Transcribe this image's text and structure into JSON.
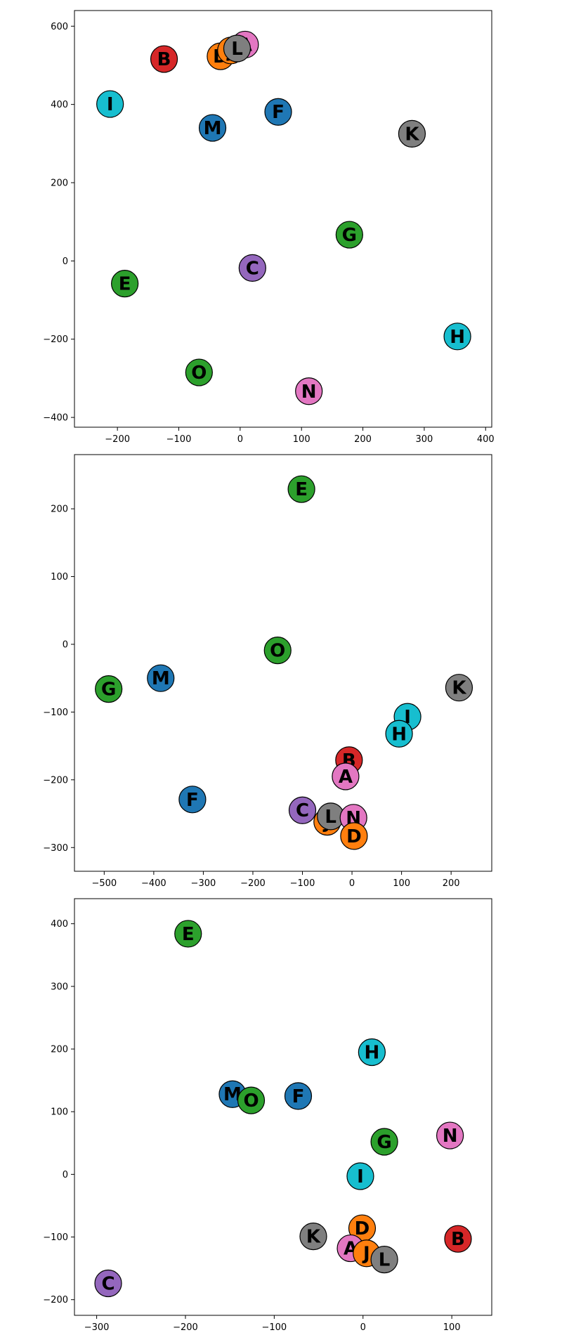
{
  "colors": {
    "blue": "#1f77b4",
    "orange": "#ff7f0e",
    "green": "#2ca02c",
    "red": "#d62728",
    "purple": "#9467bd",
    "pink": "#e377c2",
    "gray": "#7f7f7f",
    "cyan": "#17becf"
  },
  "chart_data": [
    {
      "type": "scatter",
      "xlim": [
        -270,
        410
      ],
      "ylim": [
        -425,
        640
      ],
      "xticks": [
        -200,
        -100,
        0,
        100,
        200,
        300,
        400
      ],
      "yticks": [
        -400,
        -200,
        0,
        200,
        400,
        600
      ],
      "points": [
        {
          "label": "A",
          "x": 8,
          "y": 553,
          "color": "pink"
        },
        {
          "label": "B",
          "x": -124,
          "y": 516,
          "color": "red"
        },
        {
          "label": "C",
          "x": 20,
          "y": -18,
          "color": "purple"
        },
        {
          "label": "D",
          "x": -32,
          "y": 523,
          "color": "orange"
        },
        {
          "label": "E",
          "x": -188,
          "y": -58,
          "color": "green"
        },
        {
          "label": "F",
          "x": 62,
          "y": 381,
          "color": "blue"
        },
        {
          "label": "G",
          "x": 178,
          "y": 67,
          "color": "green"
        },
        {
          "label": "H",
          "x": 354,
          "y": -193,
          "color": "cyan"
        },
        {
          "label": "I",
          "x": -212,
          "y": 401,
          "color": "cyan"
        },
        {
          "label": "J",
          "x": -15,
          "y": 538,
          "color": "orange"
        },
        {
          "label": "L",
          "x": -5,
          "y": 543,
          "color": "gray"
        },
        {
          "label": "K",
          "x": 280,
          "y": 325,
          "color": "gray"
        },
        {
          "label": "M",
          "x": -45,
          "y": 340,
          "color": "blue"
        },
        {
          "label": "N",
          "x": 112,
          "y": -333,
          "color": "pink"
        },
        {
          "label": "O",
          "x": -67,
          "y": -285,
          "color": "green"
        }
      ]
    },
    {
      "type": "scatter",
      "xlim": [
        -560,
        282
      ],
      "ylim": [
        -335,
        280
      ],
      "xticks": [
        -500,
        -400,
        -300,
        -200,
        -100,
        0,
        100,
        200
      ],
      "yticks": [
        -300,
        -200,
        -100,
        0,
        100,
        200
      ],
      "points": [
        {
          "label": "E",
          "x": -102,
          "y": 229,
          "color": "green"
        },
        {
          "label": "O",
          "x": -150,
          "y": -9,
          "color": "green"
        },
        {
          "label": "M",
          "x": -386,
          "y": -50,
          "color": "blue"
        },
        {
          "label": "G",
          "x": -491,
          "y": -66,
          "color": "green"
        },
        {
          "label": "K",
          "x": 216,
          "y": -64,
          "color": "gray"
        },
        {
          "label": "I",
          "x": 112,
          "y": -107,
          "color": "cyan"
        },
        {
          "label": "H",
          "x": 95,
          "y": -132,
          "color": "cyan"
        },
        {
          "label": "B",
          "x": -6,
          "y": -171,
          "color": "red"
        },
        {
          "label": "A",
          "x": -13,
          "y": -195,
          "color": "pink"
        },
        {
          "label": "F",
          "x": -322,
          "y": -229,
          "color": "blue"
        },
        {
          "label": "C",
          "x": -100,
          "y": -245,
          "color": "purple"
        },
        {
          "label": "J",
          "x": -50,
          "y": -262,
          "color": "orange"
        },
        {
          "label": "L",
          "x": -43,
          "y": -254,
          "color": "gray"
        },
        {
          "label": "N",
          "x": 3,
          "y": -256,
          "color": "pink"
        },
        {
          "label": "D",
          "x": 4,
          "y": -283,
          "color": "orange"
        }
      ]
    },
    {
      "type": "scatter",
      "xlim": [
        -325,
        145
      ],
      "ylim": [
        -225,
        440
      ],
      "xticks": [
        -300,
        -200,
        -100,
        0,
        100
      ],
      "yticks": [
        -200,
        -100,
        0,
        100,
        200,
        300,
        400
      ],
      "points": [
        {
          "label": "E",
          "x": -197,
          "y": 384,
          "color": "green"
        },
        {
          "label": "H",
          "x": 10,
          "y": 195,
          "color": "cyan"
        },
        {
          "label": "M",
          "x": -147,
          "y": 128,
          "color": "blue"
        },
        {
          "label": "O",
          "x": -126,
          "y": 118,
          "color": "green"
        },
        {
          "label": "F",
          "x": -73,
          "y": 125,
          "color": "blue"
        },
        {
          "label": "N",
          "x": 98,
          "y": 62,
          "color": "pink"
        },
        {
          "label": "G",
          "x": 24,
          "y": 52,
          "color": "green"
        },
        {
          "label": "I",
          "x": -3,
          "y": -3,
          "color": "cyan"
        },
        {
          "label": "D",
          "x": -1,
          "y": -86,
          "color": "orange"
        },
        {
          "label": "K",
          "x": -56,
          "y": -99,
          "color": "gray"
        },
        {
          "label": "B",
          "x": 107,
          "y": -103,
          "color": "red"
        },
        {
          "label": "A",
          "x": -14,
          "y": -118,
          "color": "pink"
        },
        {
          "label": "J",
          "x": 4,
          "y": -126,
          "color": "orange"
        },
        {
          "label": "L",
          "x": 24,
          "y": -136,
          "color": "gray"
        },
        {
          "label": "C",
          "x": -287,
          "y": -174,
          "color": "purple"
        }
      ]
    }
  ]
}
